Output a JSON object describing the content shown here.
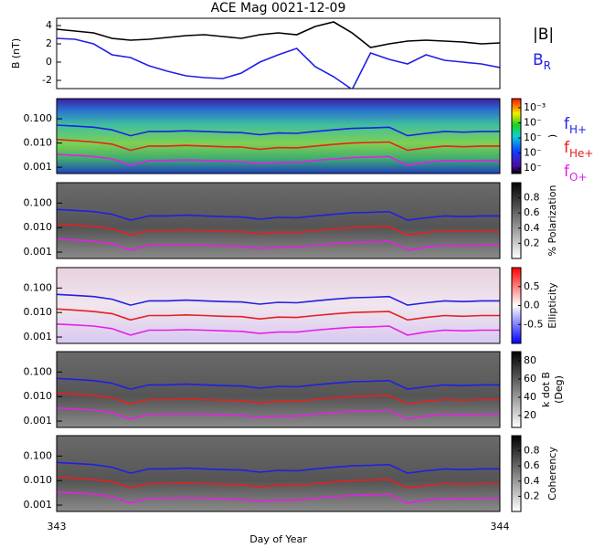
{
  "chart_data": [
    {
      "type": "line",
      "title": "ACE Mag 0021-12-09",
      "ylabel": "B (nT)",
      "x": [
        343,
        343.0417,
        343.0833,
        343.125,
        343.1667,
        343.2083,
        343.25,
        343.2917,
        343.3333,
        343.375,
        343.4167,
        343.4583,
        343.5,
        343.5417,
        343.5833,
        343.625,
        343.6667,
        343.7083,
        343.75,
        343.7917,
        343.8333,
        343.875,
        343.9167,
        343.9583,
        344
      ],
      "xlim": [
        343,
        344
      ],
      "ylim": [
        -2.9,
        4.8
      ],
      "yticks": [
        4,
        2,
        0,
        -2
      ],
      "series": [
        {
          "name": "|B|",
          "color": "#000000",
          "values": [
            3.6,
            3.4,
            3.2,
            2.6,
            2.4,
            2.5,
            2.7,
            2.9,
            3.0,
            2.8,
            2.6,
            3.0,
            3.2,
            3.0,
            3.9,
            4.4,
            3.2,
            1.6,
            2.0,
            2.3,
            2.4,
            2.3,
            2.2,
            2.0,
            2.1
          ]
        },
        {
          "name": "B",
          "subscript": "R",
          "color": "#1f1fe6",
          "values": [
            2.6,
            2.5,
            2.0,
            0.8,
            0.5,
            -0.4,
            -1.0,
            -1.5,
            -1.7,
            -1.8,
            -1.2,
            0.0,
            0.8,
            1.5,
            -0.5,
            -1.6,
            -3.0,
            1.0,
            0.3,
            -0.2,
            0.8,
            0.2,
            0.0,
            -0.2,
            -0.6
          ]
        }
      ],
      "legend": "right"
    },
    {
      "type": "spectrogram",
      "log_y": true,
      "ylim": [
        0.00055,
        0.68
      ],
      "yticks": [
        {
          "value": 0.1,
          "label": "0.100"
        },
        {
          "value": 0.01,
          "label": "0.010"
        },
        {
          "value": 0.001,
          "label": "0.001"
        }
      ],
      "colormap": "rainbow",
      "clim": [
        -7.35,
        -2.4
      ],
      "cticks": [
        {
          "value": -3,
          "label": "10⁻³"
        },
        {
          "value": -4,
          "label": "10⁻"
        },
        {
          "value": -5,
          "label": "10⁻"
        },
        {
          "value": -6,
          "label": "10⁻"
        },
        {
          "value": -7,
          "label": "10⁻"
        }
      ],
      "colorbar_label": ")",
      "series": [
        {
          "name": "f",
          "subscript": "H+",
          "color": "#1f1fe6",
          "values": [
            0.055,
            0.05,
            0.045,
            0.035,
            0.02,
            0.03,
            0.03,
            0.032,
            0.03,
            0.028,
            0.027,
            0.022,
            0.026,
            0.025,
            0.03,
            0.035,
            0.04,
            0.042,
            0.045,
            0.02,
            0.025,
            0.03,
            0.028,
            0.03,
            0.03
          ]
        },
        {
          "name": "f",
          "subscript": "He+",
          "color": "#e61f1f",
          "values": [
            0.014,
            0.0125,
            0.011,
            0.009,
            0.005,
            0.0075,
            0.0075,
            0.008,
            0.0075,
            0.007,
            0.0068,
            0.0055,
            0.0065,
            0.0063,
            0.0075,
            0.0088,
            0.01,
            0.0105,
            0.011,
            0.005,
            0.0063,
            0.0075,
            0.007,
            0.0075,
            0.0075
          ]
        },
        {
          "name": "f",
          "subscript": "O+",
          "color": "#e61fe6",
          "values": [
            0.0034,
            0.0031,
            0.0028,
            0.0022,
            0.0012,
            0.0019,
            0.0019,
            0.002,
            0.0019,
            0.0018,
            0.0017,
            0.0014,
            0.0016,
            0.0016,
            0.0019,
            0.0022,
            0.0025,
            0.0026,
            0.0028,
            0.0012,
            0.0016,
            0.0019,
            0.0018,
            0.0019,
            0.0019
          ]
        }
      ],
      "legend": "right"
    },
    {
      "type": "spectrogram",
      "log_y": true,
      "ylim": [
        0.00055,
        0.68
      ],
      "yticks": [
        {
          "value": 0.1,
          "label": "0.100"
        },
        {
          "value": 0.01,
          "label": "0.010"
        },
        {
          "value": 0.001,
          "label": "0.001"
        }
      ],
      "colormap": "gray",
      "clim": [
        0,
        1
      ],
      "cticks": [
        0.8,
        0.6,
        0.4,
        0.2
      ],
      "colorbar_label": "% Polarization"
    },
    {
      "type": "spectrogram",
      "log_y": true,
      "ylim": [
        0.00055,
        0.68
      ],
      "yticks": [
        {
          "value": 0.1,
          "label": "0.100"
        },
        {
          "value": 0.01,
          "label": "0.010"
        },
        {
          "value": 0.001,
          "label": "0.001"
        }
      ],
      "colormap": "bwr",
      "clim": [
        -1,
        1
      ],
      "cticks": [
        0.5,
        {
          "value": 0,
          "label": "0.0"
        },
        -0.5
      ],
      "colorbar_label": "Ellipticity"
    },
    {
      "type": "spectrogram",
      "log_y": true,
      "ylim": [
        0.00055,
        0.68
      ],
      "yticks": [
        {
          "value": 0.1,
          "label": "0.100"
        },
        {
          "value": 0.01,
          "label": "0.010"
        },
        {
          "value": 0.001,
          "label": "0.001"
        }
      ],
      "colormap": "gray",
      "clim": [
        7,
        90
      ],
      "cticks": [
        80,
        60,
        40,
        20
      ],
      "colorbar_label": "k dot B",
      "colorbar_label2": "(Deg)"
    },
    {
      "type": "spectrogram",
      "log_y": true,
      "ylim": [
        0.00055,
        0.68
      ],
      "yticks": [
        {
          "value": 0.1,
          "label": "0.100"
        },
        {
          "value": 0.01,
          "label": "0.010"
        },
        {
          "value": 0.001,
          "label": "0.001"
        }
      ],
      "colormap": "gray",
      "clim": [
        0,
        1
      ],
      "cticks": [
        0.8,
        0.6,
        0.4,
        0.2
      ],
      "colorbar_label": "Coherency",
      "xticks": [
        343,
        344
      ],
      "xlabel": "Day of Year"
    }
  ]
}
